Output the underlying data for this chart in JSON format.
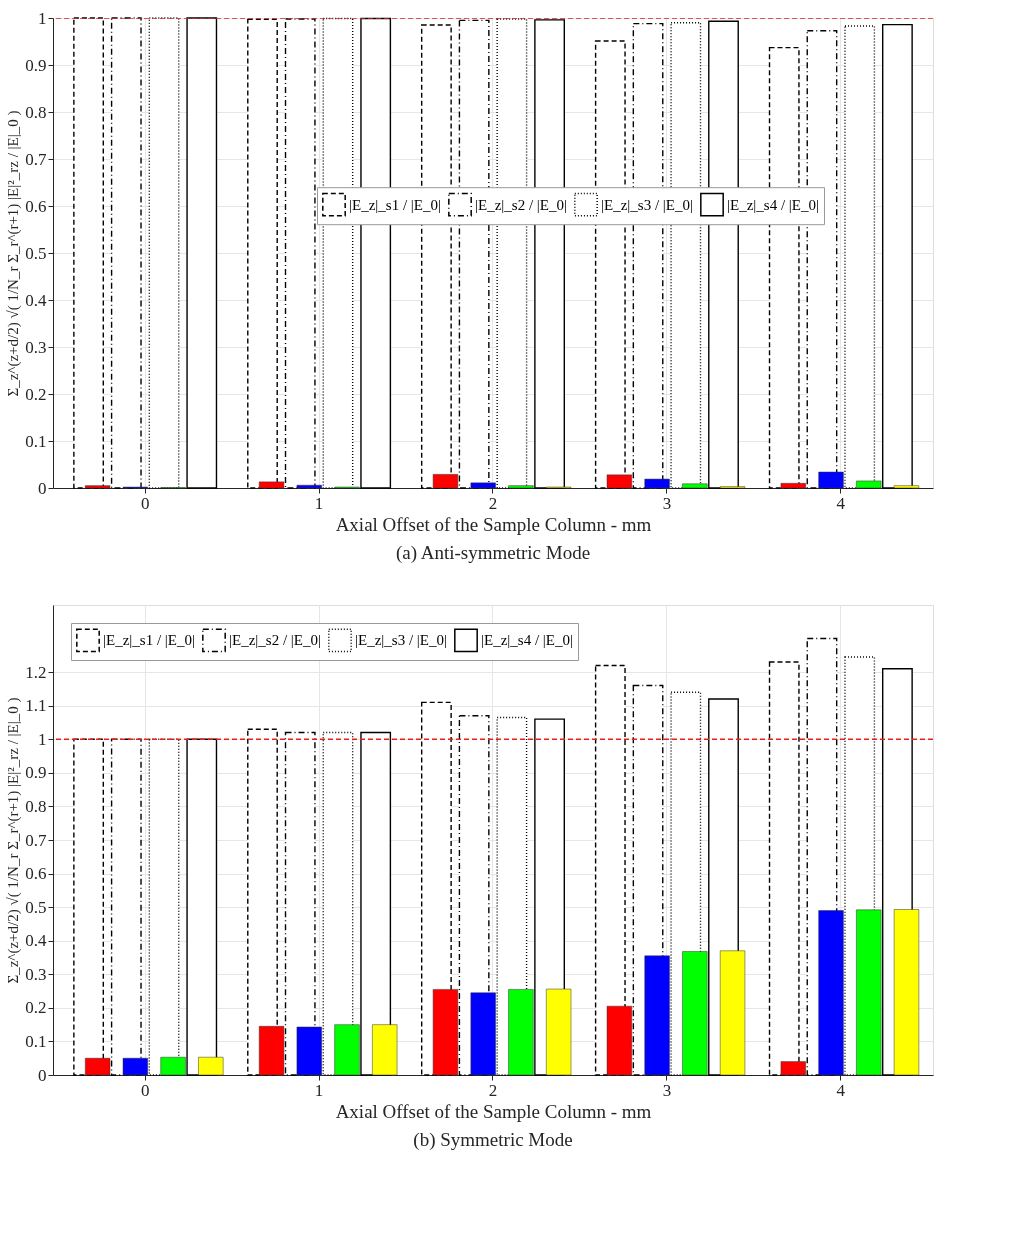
{
  "chart_data": [
    {
      "type": "bar",
      "title": "(a) Anti-symmetric Mode",
      "xlabel": "Axial Offset of the Sample Column - mm",
      "ylabel": "Σ_z^(z+d/2) √( 1/N_r Σ_r^(r+1) |E|²_rz / |E|_0 )",
      "categories": [
        "0",
        "1",
        "2",
        "3",
        "4"
      ],
      "ylim": [
        0,
        1
      ],
      "yticks": [
        0,
        0.1,
        0.2,
        0.3,
        0.4,
        0.5,
        0.6,
        0.7,
        0.8,
        0.9,
        1
      ],
      "grid": true,
      "legend": "center",
      "ref_lines": [
        {
          "axis": "y",
          "value": 1,
          "color": "#e8201a",
          "line_style": "dashed"
        }
      ],
      "series": [
        {
          "name": "|E_z|_s1 / |E_0|",
          "color": "#000000",
          "line_style": "dashed",
          "values": [
            1.0,
            0.997,
            0.985,
            0.951,
            0.937
          ]
        },
        {
          "name": "|E_z|_s2 / |E_0|",
          "color": "#000000",
          "line_style": "dashdot",
          "values": [
            1.0,
            0.998,
            0.995,
            0.988,
            0.973
          ]
        },
        {
          "name": "|E_z|_s3 / |E_0|",
          "color": "#000000",
          "line_style": "dotted",
          "values": [
            1.0,
            0.999,
            0.998,
            0.99,
            0.983
          ]
        },
        {
          "name": "|E_z|_s4 / |E_0|",
          "color": "#000000",
          "line_style": "solid",
          "values": [
            1.0,
            0.999,
            0.996,
            0.993,
            0.986
          ]
        },
        {
          "color": "#ff0000",
          "values": [
            0.005,
            0.013,
            0.029,
            0.028,
            0.01
          ]
        },
        {
          "color": "#0000ff",
          "values": [
            0.002,
            0.006,
            0.011,
            0.019,
            0.034
          ]
        },
        {
          "color": "#00ff00",
          "values": [
            0.001,
            0.002,
            0.005,
            0.009,
            0.015
          ]
        },
        {
          "color": "#ffff00",
          "values": [
            null,
            null,
            0.002,
            0.003,
            0.005
          ]
        }
      ]
    },
    {
      "type": "bar",
      "title": "(b) Symmetric Mode",
      "xlabel": "Axial Offset of the Sample Column - mm",
      "ylabel": "Σ_z^(z+d/2) √( 1/N_r Σ_r^(r+1) |E|²_rz / |E|_0 )",
      "categories": [
        "0",
        "1",
        "2",
        "3",
        "4"
      ],
      "ylim": [
        0,
        1.4
      ],
      "yticks": [
        0,
        0.1,
        0.2,
        0.3,
        0.4,
        0.5,
        0.6,
        0.7,
        0.8,
        0.9,
        1,
        1.1,
        1.2
      ],
      "grid": true,
      "legend": "top left",
      "ref_lines": [
        {
          "axis": "y",
          "value": 1,
          "color": "#e8201a",
          "line_style": "dashed"
        }
      ],
      "series": [
        {
          "name": "|E_z|_s1 / |E_0|",
          "color": "#000000",
          "line_style": "dashed",
          "values": [
            1.0,
            1.03,
            1.11,
            1.22,
            1.23
          ]
        },
        {
          "name": "|E_z|_s2 / |E_0|",
          "color": "#000000",
          "line_style": "dashdot",
          "values": [
            1.0,
            1.02,
            1.07,
            1.16,
            1.3
          ]
        },
        {
          "name": "|E_z|_s3 / |E_0|",
          "color": "#000000",
          "line_style": "dotted",
          "values": [
            1.0,
            1.02,
            1.065,
            1.14,
            1.245
          ]
        },
        {
          "name": "|E_z|_s4 / |E_0|",
          "color": "#000000",
          "line_style": "solid",
          "values": [
            1.0,
            1.02,
            1.06,
            1.12,
            1.21
          ]
        },
        {
          "color": "#ff0000",
          "values": [
            0.05,
            0.145,
            0.255,
            0.205,
            0.04
          ]
        },
        {
          "color": "#0000ff",
          "values": [
            0.05,
            0.143,
            0.245,
            0.355,
            0.49
          ]
        },
        {
          "color": "#00ff00",
          "values": [
            0.053,
            0.15,
            0.255,
            0.368,
            0.492
          ]
        },
        {
          "color": "#ffff00",
          "values": [
            0.053,
            0.15,
            0.256,
            0.37,
            0.493
          ]
        }
      ]
    }
  ]
}
